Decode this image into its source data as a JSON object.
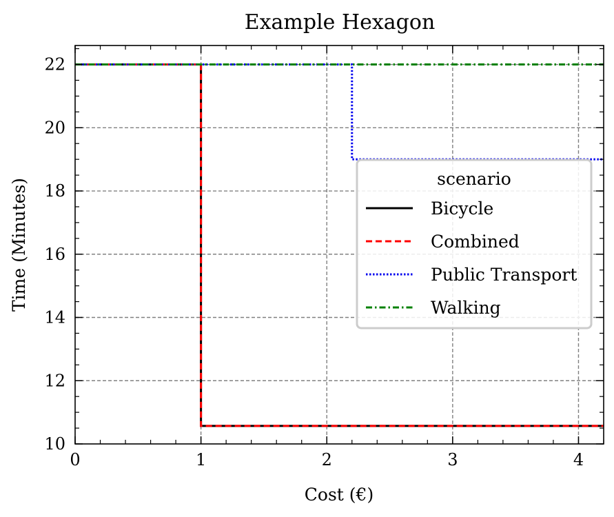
{
  "chart_data": {
    "type": "line",
    "title": "Example Hexagon",
    "xlabel": "Cost (€)",
    "ylabel": "Time (Minutes)",
    "xlim": [
      0,
      4.2
    ],
    "ylim": [
      10,
      22.6
    ],
    "xticks": [
      0,
      1,
      2,
      3,
      4
    ],
    "yticks": [
      10,
      12,
      14,
      16,
      18,
      20,
      22
    ],
    "grid": true,
    "legend": {
      "title": "scenario",
      "position": "center-right"
    },
    "series": [
      {
        "name": "Bicycle",
        "color": "#000000",
        "style": "solid",
        "step": true,
        "x": [
          0,
          1,
          1,
          4.2
        ],
        "y": [
          22,
          22,
          10.57,
          10.57
        ]
      },
      {
        "name": "Combined",
        "color": "#ff0000",
        "style": "dashed",
        "step": true,
        "x": [
          0,
          1,
          1,
          4.2
        ],
        "y": [
          22,
          22,
          10.57,
          10.57
        ]
      },
      {
        "name": "Public Transport",
        "color": "#0000ee",
        "style": "dotted",
        "step": true,
        "x": [
          0,
          2.2,
          2.2,
          4.2
        ],
        "y": [
          22,
          22,
          19,
          19
        ]
      },
      {
        "name": "Walking",
        "color": "#008000",
        "style": "dashdot",
        "step": true,
        "x": [
          0,
          4.2
        ],
        "y": [
          22,
          22
        ]
      }
    ]
  }
}
